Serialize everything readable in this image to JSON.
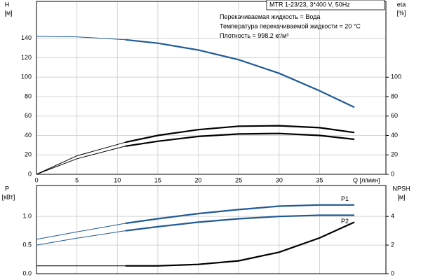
{
  "chart_data": [
    {
      "type": "line",
      "info": [
        "MTR 1-23/23, 3*400 V, 50Hz",
        "Перекачиваемая жидкость = Вода",
        "Температура перекачиваемой жидкости = 20 °C",
        "Плотность = 998.2 кг/м³"
      ],
      "ylabel": [
        "H",
        "[м]"
      ],
      "y2label": [
        "eta",
        "[%]"
      ],
      "xlabel": "Q [л/мин]",
      "x": [
        0,
        5,
        11,
        15,
        20,
        25,
        30,
        35,
        39.3
      ],
      "xlim": [
        0,
        43.2
      ],
      "xticks": [
        0,
        5,
        10,
        15,
        20,
        25,
        30,
        35
      ],
      "ylim": [
        0,
        178
      ],
      "yticks": [
        0,
        20,
        40,
        60,
        80,
        100,
        120,
        140
      ],
      "y2lim": [
        0,
        178
      ],
      "y2ticks": [
        0,
        20,
        40,
        60,
        80,
        100
      ],
      "grid": true,
      "bold_from": 11,
      "series": [
        {
          "color": "#1f5a96",
          "values": [
            142,
            141.5,
            138.5,
            135,
            128,
            118,
            104,
            86,
            69
          ]
        },
        {
          "color": "#000000",
          "axis": "y2",
          "values": [
            0,
            19,
            33,
            40,
            46,
            49.5,
            50,
            48,
            43
          ]
        },
        {
          "color": "#000000",
          "axis": "y2",
          "values": [
            0,
            16,
            29,
            34,
            39,
            41.5,
            42,
            40,
            36
          ]
        }
      ]
    },
    {
      "type": "line",
      "ylabel": [
        "P",
        "[кВт]"
      ],
      "y2label": [
        "NPSH",
        "[м]"
      ],
      "x": [
        0,
        5,
        11,
        15,
        20,
        25,
        30,
        35,
        39.3
      ],
      "xlim": [
        0,
        43.2
      ],
      "xticks": [
        0,
        5,
        10,
        15,
        20,
        25,
        30,
        35
      ],
      "xtick_labels": false,
      "ylim": [
        0,
        1.54
      ],
      "yticks": [
        {
          "value": 0,
          "label": "0.0"
        },
        0.5,
        {
          "value": 1,
          "label": "1.0"
        }
      ],
      "y2lim": [
        0,
        6.16
      ],
      "y2ticks": [
        0,
        2,
        4
      ],
      "grid": true,
      "bold_from": 11,
      "series": [
        {
          "name": "P1",
          "color": "#1f5a96",
          "values": [
            0.6,
            0.73,
            0.88,
            0.96,
            1.05,
            1.12,
            1.18,
            1.2,
            1.2
          ]
        },
        {
          "name": "P2",
          "color": "#1f5a96",
          "values": [
            0.5,
            0.62,
            0.75,
            0.82,
            0.9,
            0.96,
            1.0,
            1.02,
            1.02
          ]
        },
        {
          "color": "#000000",
          "axis": "y2",
          "values": [
            0.55,
            0.55,
            0.55,
            0.55,
            0.65,
            0.9,
            1.5,
            2.5,
            3.6
          ]
        }
      ]
    }
  ]
}
